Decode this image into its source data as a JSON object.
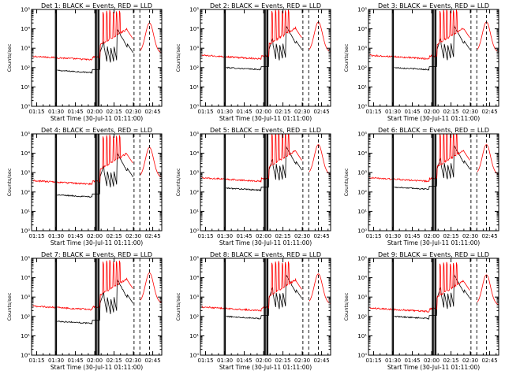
{
  "chart_data": {
    "type": "line",
    "title_template": "Det {n}: BLACK = Events, RED = LLD",
    "xlabel": "Start Time (30-Jul-11 01:11:00)",
    "ylabel": "Counts/sec",
    "x_ticks": [
      "01:15",
      "01:30",
      "01:45",
      "02:00",
      "02:15",
      "02:30",
      "02:45"
    ],
    "x_tick_minutes": [
      4,
      19,
      34,
      49,
      64,
      79,
      94
    ],
    "xlim_minutes": [
      0,
      101
    ],
    "y_ticks": [
      "10⁰",
      "10¹",
      "10²",
      "10³",
      "10⁴",
      "10⁵"
    ],
    "ylim_log10": [
      0,
      5
    ],
    "marker_lines_minutes": {
      "solid": [
        18.5,
        19.3,
        49.5,
        50.3,
        51.5,
        52.3
      ],
      "dashed": [
        79.5,
        84.0,
        91.5
      ]
    },
    "series_colors": {
      "events": "#000000",
      "lld": "#ff0000"
    },
    "panels": [
      {
        "det": "1",
        "title": "Det 1: BLACK = Events, RED = LLD",
        "events_level": 1.85,
        "lld_level": 2.45
      },
      {
        "det": "2",
        "title": "Det 2: BLACK = Events, RED = LLD",
        "events_level": 2.0,
        "lld_level": 2.5
      },
      {
        "det": "3",
        "title": "Det 3: BLACK = Events, RED = LLD",
        "events_level": 2.0,
        "lld_level": 2.5
      },
      {
        "det": "4",
        "title": "Det 4: BLACK = Events, RED = LLD",
        "events_level": 1.85,
        "lld_level": 2.45
      },
      {
        "det": "5",
        "title": "Det 5: BLACK = Events, RED = LLD",
        "events_level": 2.2,
        "lld_level": 2.6
      },
      {
        "det": "6",
        "title": "Det 6: BLACK = Events, RED = LLD",
        "events_level": 2.25,
        "lld_level": 2.6
      },
      {
        "det": "7",
        "title": "Det 7: BLACK = Events, RED = LLD",
        "events_level": 1.75,
        "lld_level": 2.4
      },
      {
        "det": "8",
        "title": "Det 8: BLACK = Events, RED = LLD",
        "events_level": 2.0,
        "lld_level": 2.35
      },
      {
        "det": "9",
        "title": "Det 9: BLACK = Events, RED = LLD",
        "events_level": 2.0,
        "lld_level": 2.3
      }
    ]
  }
}
